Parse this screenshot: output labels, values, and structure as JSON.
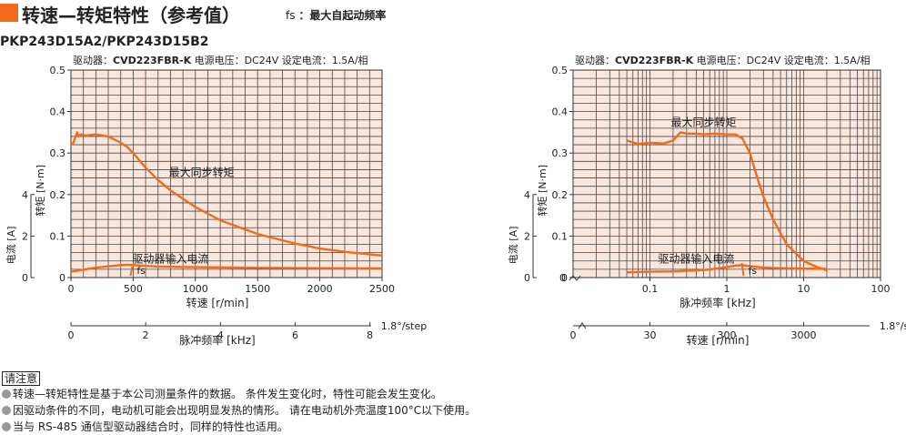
{
  "header": {
    "title": "转速—转矩特性（参考值）",
    "fs_label": "fs",
    "fs_desc": "：最大自起动频率"
  },
  "model": "PKP243D15A2/PKP243D15B2",
  "colors": {
    "accent": "#f26a1b",
    "plot_bg": "#fbe6dc",
    "grid": "#4a4a4a"
  },
  "charts": [
    {
      "subtitle_prefix": "驱动器：",
      "driver": "CVD223FBR-K",
      "subtitle_rest": " 电源电压：DC24V 设定电流：1.5A/相",
      "torque_label": "最大同步转矩",
      "current_label": "驱动器输入电流",
      "fs_label": "fs",
      "yaxis_label": "转矩 [N·m]",
      "yaxis2_label": "电流 [A]",
      "xaxis_label": "转速 [r/min]",
      "xaxis2_label": "脉冲频率 [kHz]",
      "step_label": "1.8°/step"
    },
    {
      "subtitle_prefix": "驱动器：",
      "driver": "CVD223FBR-K",
      "subtitle_rest": " 电源电压：DC24V 设定电流：1.5A/相",
      "torque_label": "最大同步转矩",
      "current_label": "驱动器输入电流",
      "fs_label": "fs",
      "yaxis_label": "转矩 [N·m]",
      "yaxis2_label": "电流 [A]",
      "xaxis_label": "脉冲频率 [kHz]",
      "xaxis2_label": "转速 [r/min]",
      "step_label": "1.8°/step"
    }
  ],
  "chart_data": [
    {
      "type": "line",
      "x_scale": "linear",
      "xlabel": "转速 [r/min]",
      "xlim": [
        0,
        2500
      ],
      "xticks": [
        0,
        500,
        1000,
        1500,
        2000,
        2500
      ],
      "ylabel": "转矩 [N·m]",
      "ylim": [
        0,
        0.5
      ],
      "yticks": [
        0,
        0.1,
        0.2,
        0.3,
        0.4,
        0.5
      ],
      "y2label": "电流 [A]",
      "y2ticks": [
        0,
        2,
        4
      ],
      "x2label": "脉冲频率 [kHz]",
      "x2ticks": [
        0,
        2,
        4,
        6,
        8
      ],
      "x2_per_x": 0.00333,
      "series": [
        {
          "name": "最大同步转矩",
          "axis": "torque",
          "x": [
            0,
            20,
            50,
            60,
            80,
            120,
            200,
            300,
            400,
            450,
            500,
            600,
            700,
            800,
            1000,
            1200,
            1500,
            1800,
            2000,
            2200,
            2500
          ],
          "y": [
            0.32,
            0.325,
            0.35,
            0.34,
            0.345,
            0.342,
            0.345,
            0.34,
            0.325,
            0.315,
            0.3,
            0.265,
            0.235,
            0.21,
            0.17,
            0.138,
            0.105,
            0.082,
            0.07,
            0.062,
            0.053
          ]
        },
        {
          "name": "驱动器输入电流",
          "axis": "current",
          "x": [
            0,
            200,
            400,
            450,
            500,
            700,
            1000,
            1500,
            2000,
            2500
          ],
          "y": [
            0.28,
            0.48,
            0.6,
            0.62,
            0.6,
            0.53,
            0.5,
            0.47,
            0.45,
            0.44
          ]
        }
      ],
      "annotations": [
        {
          "text": "fs",
          "x": 500
        }
      ]
    },
    {
      "type": "line",
      "x_scale": "log",
      "xlabel": "脉冲频率 [kHz]",
      "xlim": [
        0.01,
        100
      ],
      "xticks": [
        0.1,
        1,
        10,
        100
      ],
      "ylabel": "转矩 [N·m]",
      "ylim": [
        0,
        0.5
      ],
      "yticks": [
        0,
        0.1,
        0.2,
        0.3,
        0.4,
        0.5
      ],
      "y2label": "电流 [A]",
      "y2ticks": [
        0,
        2,
        4
      ],
      "x2label": "转速 [r/min]",
      "x2ticks": [
        0,
        30,
        300,
        3000
      ],
      "series": [
        {
          "name": "最大同步转矩",
          "axis": "torque",
          "x": [
            0.05,
            0.07,
            0.1,
            0.15,
            0.2,
            0.25,
            0.3,
            0.4,
            0.5,
            0.7,
            1,
            1.3,
            1.6,
            2,
            2.5,
            3,
            4,
            6,
            10,
            15,
            20
          ],
          "y": [
            0.33,
            0.322,
            0.325,
            0.323,
            0.33,
            0.35,
            0.347,
            0.347,
            0.345,
            0.347,
            0.345,
            0.345,
            0.335,
            0.3,
            0.24,
            0.195,
            0.14,
            0.08,
            0.04,
            0.025,
            0.018
          ]
        },
        {
          "name": "驱动器输入电流",
          "axis": "current",
          "x": [
            0.05,
            0.1,
            0.2,
            0.5,
            0.8,
            1,
            1.3,
            1.6,
            2,
            3,
            5,
            10,
            20
          ],
          "y": [
            0.25,
            0.28,
            0.3,
            0.36,
            0.45,
            0.5,
            0.58,
            0.6,
            0.55,
            0.48,
            0.45,
            0.43,
            0.42
          ]
        }
      ],
      "annotations": [
        {
          "text": "fs",
          "x": 1.7
        }
      ]
    }
  ],
  "notes": {
    "title": "请注意",
    "lines": [
      "转速—转矩特性是基于本公司测量条件的数据。 条件发生变化时，特性可能会发生变化。",
      "因驱动条件的不同，电动机可能会出现明显发热的情形。 请在电动机外壳温度100°C以下使用。",
      "当与 RS-485 通信型驱动器结合时，同样的特性也适用。"
    ]
  }
}
